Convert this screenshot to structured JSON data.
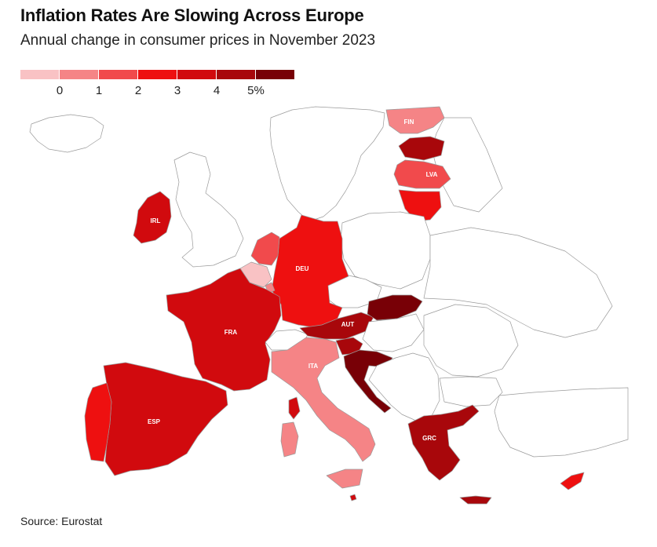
{
  "header": {
    "title": "Inflation Rates Are Slowing Across Europe",
    "subtitle": "Annual change in consumer prices in November 2023"
  },
  "legend": {
    "colors": [
      "#f9c2c4",
      "#f58486",
      "#f14a4c",
      "#ee1010",
      "#d10a0e",
      "#a8070b",
      "#780006"
    ],
    "ticks": [
      "0",
      "1",
      "2",
      "3",
      "4",
      "5%"
    ]
  },
  "countries": {
    "fin": {
      "label": "FIN",
      "color": "#f58486"
    },
    "lva": {
      "label": "LVA",
      "color": "#f14a4c"
    },
    "irl": {
      "label": "IRL",
      "color": "#d10a0e"
    },
    "deu": {
      "label": "DEU",
      "color": "#ee1010"
    },
    "fra": {
      "label": "FRA",
      "color": "#d10a0e"
    },
    "aut": {
      "label": "AUT",
      "color": "#a8070b"
    },
    "ita": {
      "label": "ITA",
      "color": "#f58486"
    },
    "esp": {
      "label": "ESP",
      "color": "#d10a0e"
    },
    "grc": {
      "label": "GRC",
      "color": "#a8070b"
    }
  },
  "other_colors": {
    "est": "#a8070b",
    "ltu": "#ee1010",
    "nld": "#f14a4c",
    "bel": "#f9c2c4",
    "lux": "#f58486",
    "prt": "#ee1010",
    "svk": "#780006",
    "svn": "#a8070b",
    "hrv": "#780006",
    "cyp": "#ee1010",
    "mlt": "#d10a0e",
    "non_euro": "#ffffff",
    "border": "#9a9a9a"
  },
  "footer": {
    "source": "Source: Eurostat"
  }
}
